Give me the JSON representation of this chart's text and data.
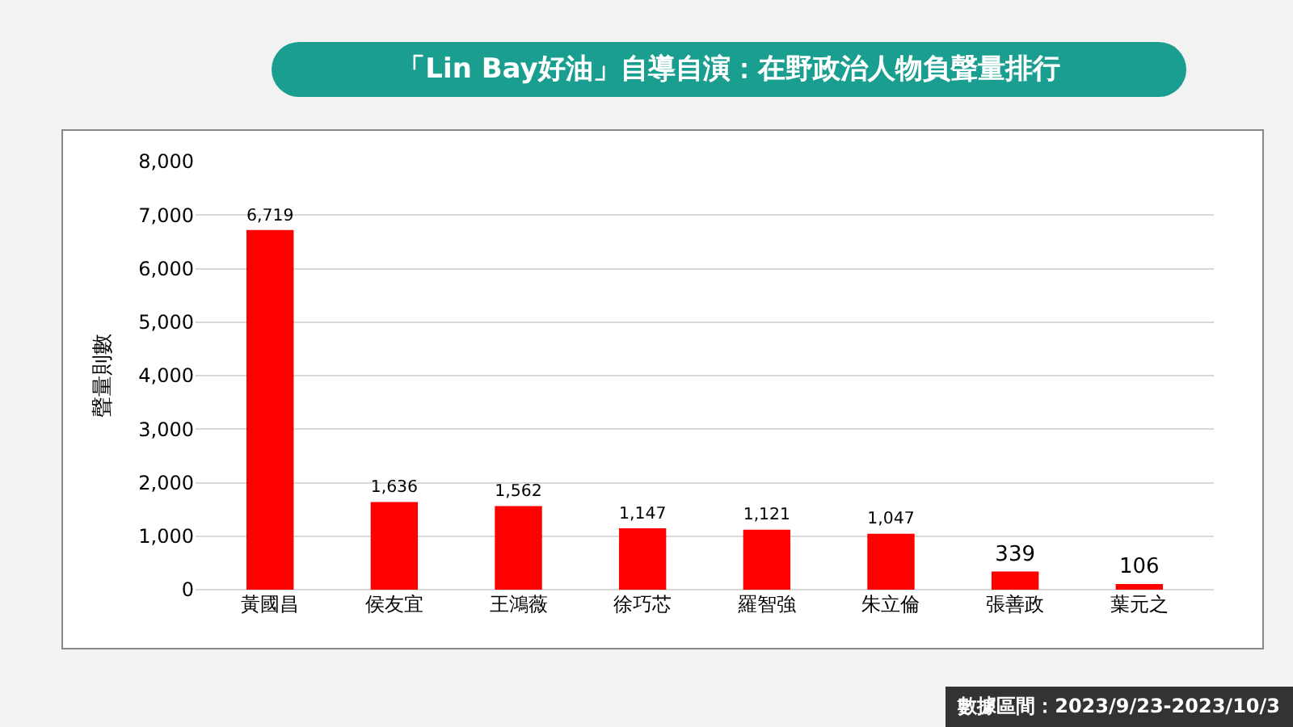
{
  "chart_data": {
    "type": "bar",
    "title": "「Lin Bay好油」自導自演：在野政治人物負聲量排行",
    "ylabel": "聲量則數",
    "categories": [
      "黃國昌",
      "侯友宜",
      "王鴻薇",
      "徐巧芯",
      "羅智強",
      "朱立倫",
      "張善政",
      "葉元之"
    ],
    "values": [
      6719,
      1636,
      1562,
      1147,
      1121,
      1047,
      339,
      106
    ],
    "value_labels": [
      "6,719",
      "1,636",
      "1,562",
      "1,147",
      "1,121",
      "1,047",
      "339",
      "106"
    ],
    "color": "#ff0000",
    "ylim": [
      0,
      8000
    ],
    "yticks": [
      {
        "value": 0,
        "label": "0"
      },
      {
        "value": 1000,
        "label": "1,000"
      },
      {
        "value": 2000,
        "label": "2,000"
      },
      {
        "value": 3000,
        "label": "3,000"
      },
      {
        "value": 4000,
        "label": "4,000"
      },
      {
        "value": 5000,
        "label": "5,000"
      },
      {
        "value": 6000,
        "label": "6,000"
      },
      {
        "value": 7000,
        "label": "7,000"
      },
      {
        "value": 8000,
        "label": "8,000"
      }
    ],
    "grid": "y",
    "annotations": [
      "數據區間：2023/9/23-2023/10/3"
    ]
  }
}
